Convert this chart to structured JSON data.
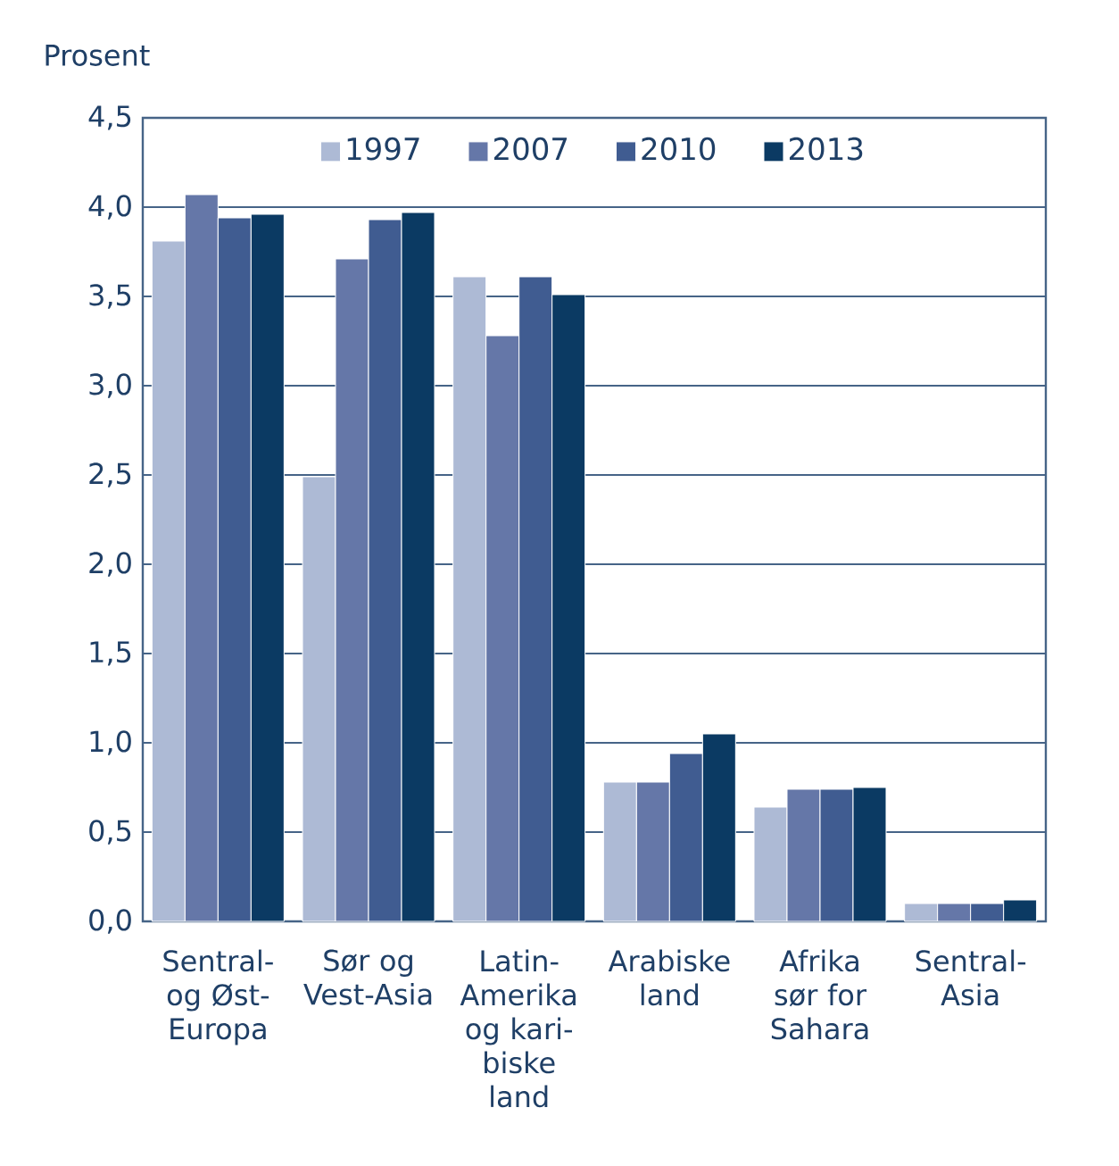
{
  "chart_data": {
    "type": "bar",
    "ylabel": "Prosent",
    "categories": [
      "Sentral- og Øst-Europa",
      "Sør og Vest-Asia",
      "Latin-Amerika og kari-biske land",
      "Arabiske land",
      "Afrika sør for Sahara",
      "Sentral-Asia"
    ],
    "series": [
      {
        "name": "1997",
        "color": "#adbad5",
        "values": [
          3.81,
          2.49,
          3.61,
          0.78,
          0.64,
          0.1
        ]
      },
      {
        "name": "2007",
        "color": "#6577a8",
        "values": [
          4.07,
          3.71,
          3.28,
          0.78,
          0.74,
          0.1
        ]
      },
      {
        "name": "2010",
        "color": "#405c91",
        "values": [
          3.94,
          3.93,
          3.61,
          0.94,
          0.74,
          0.1
        ]
      },
      {
        "name": "2013",
        "color": "#0b3a63",
        "values": [
          3.96,
          3.97,
          3.51,
          1.05,
          0.75,
          0.12
        ]
      }
    ],
    "ylim": [
      0,
      4.5
    ],
    "yticks": [
      {
        "value": 0,
        "label": "0,0"
      },
      {
        "value": 0.5,
        "label": "0,5"
      },
      {
        "value": 1,
        "label": "1,0"
      },
      {
        "value": 1.5,
        "label": "1,5"
      },
      {
        "value": 2,
        "label": "2,0"
      },
      {
        "value": 2.5,
        "label": "2,5"
      },
      {
        "value": 3,
        "label": "3,0"
      },
      {
        "value": 3.5,
        "label": "3,5"
      },
      {
        "value": 4,
        "label": "4,0"
      },
      {
        "value": 4.5,
        "label": "4,5"
      }
    ],
    "grid": "y",
    "legend": "top"
  }
}
